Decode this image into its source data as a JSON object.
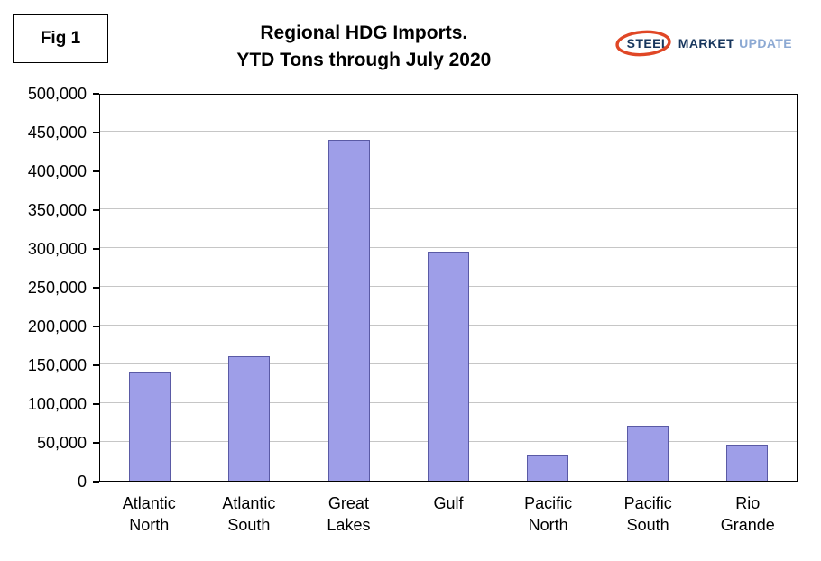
{
  "figure": {
    "label": "Fig 1"
  },
  "logo": {
    "steel": "STEEL",
    "market": "MARKET",
    "update": "UPDATE",
    "swoosh_color": "#e04726"
  },
  "chart_data": {
    "type": "bar",
    "title": "Regional HDG Imports.",
    "subtitle": "YTD Tons through July 2020",
    "categories": [
      "Atlantic North",
      "Atlantic South",
      "Great Lakes",
      "Gulf",
      "Pacific North",
      "Pacific South",
      "Rio Grande"
    ],
    "values": [
      140000,
      160000,
      440000,
      295000,
      32000,
      71000,
      46000
    ],
    "xlabel": "",
    "ylabel": "",
    "ylim": [
      0,
      500000
    ],
    "ytick_step": 50000,
    "grid": true,
    "legend": "none",
    "bar_color": "#9e9ee8",
    "bar_border": "#5a5aa5",
    "gridline_color": "#c6c6c6"
  }
}
